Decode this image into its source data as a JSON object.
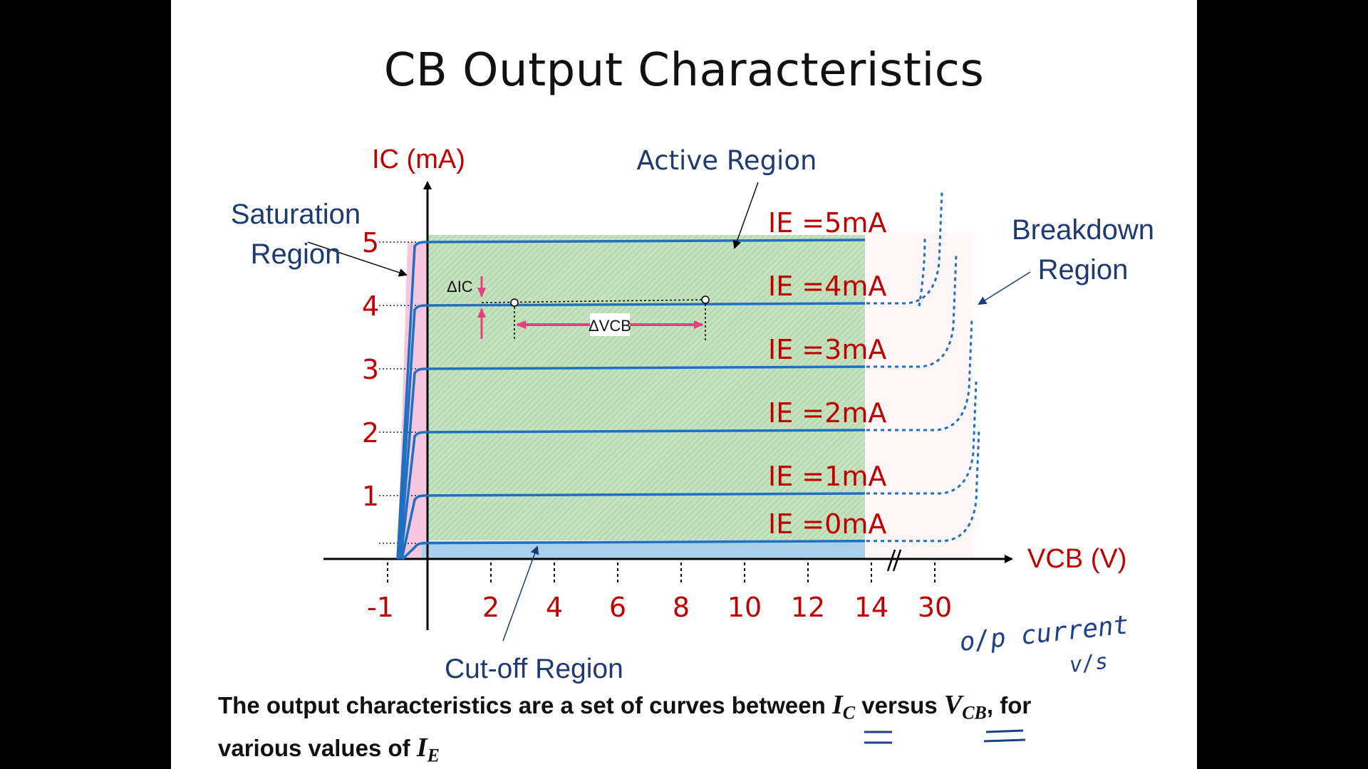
{
  "slide": {
    "title": "CB Output Characteristics",
    "caption_main": "The output characteristics are a set of curves between ",
    "caption_var1": "I",
    "caption_sub1": "C",
    "caption_mid": " versus ",
    "caption_var2": "V",
    "caption_sub2": "CB",
    "caption_end": ", for various values of ",
    "caption_var3": "I",
    "caption_sub3": "E"
  },
  "regions": {
    "saturation": [
      "Saturation",
      "Region"
    ],
    "active": "Active Region",
    "breakdown": [
      "Breakdown",
      "Region"
    ],
    "cutoff": "Cut-off Region"
  },
  "handwriting": {
    "line1": "o/p current",
    "line2": "v/s"
  },
  "colors": {
    "axis_label": "#c00000",
    "curve": "#1f6fc2",
    "region_text": "#1f3a72",
    "active_fill": "#bfe0b8",
    "saturation_fill": "#f6c6dc",
    "cutoff_fill": "#a9d0ea",
    "delta_arrow": "#e8407a"
  },
  "chart_data": {
    "type": "line",
    "title": "",
    "xlabel": "VCB  (V)",
    "ylabel": "IC  (mA)",
    "x_tick_labels": [
      "-1",
      "2",
      "4",
      "6",
      "8",
      "10",
      "12",
      "14",
      "30"
    ],
    "y_ticks": [
      1,
      2,
      3,
      4,
      5
    ],
    "ylim": [
      0,
      5
    ],
    "series": [
      {
        "name": "IE =5mA",
        "ic": 5
      },
      {
        "name": "IE =4mA",
        "ic": 4
      },
      {
        "name": "IE =3mA",
        "ic": 3
      },
      {
        "name": "IE =2mA",
        "ic": 2
      },
      {
        "name": "IE =1mA",
        "ic": 1
      },
      {
        "name": "IE =0mA",
        "ic": 0.25
      }
    ],
    "annotations": {
      "delta_ic": "ΔIC",
      "delta_vcb": "ΔVCB"
    }
  }
}
